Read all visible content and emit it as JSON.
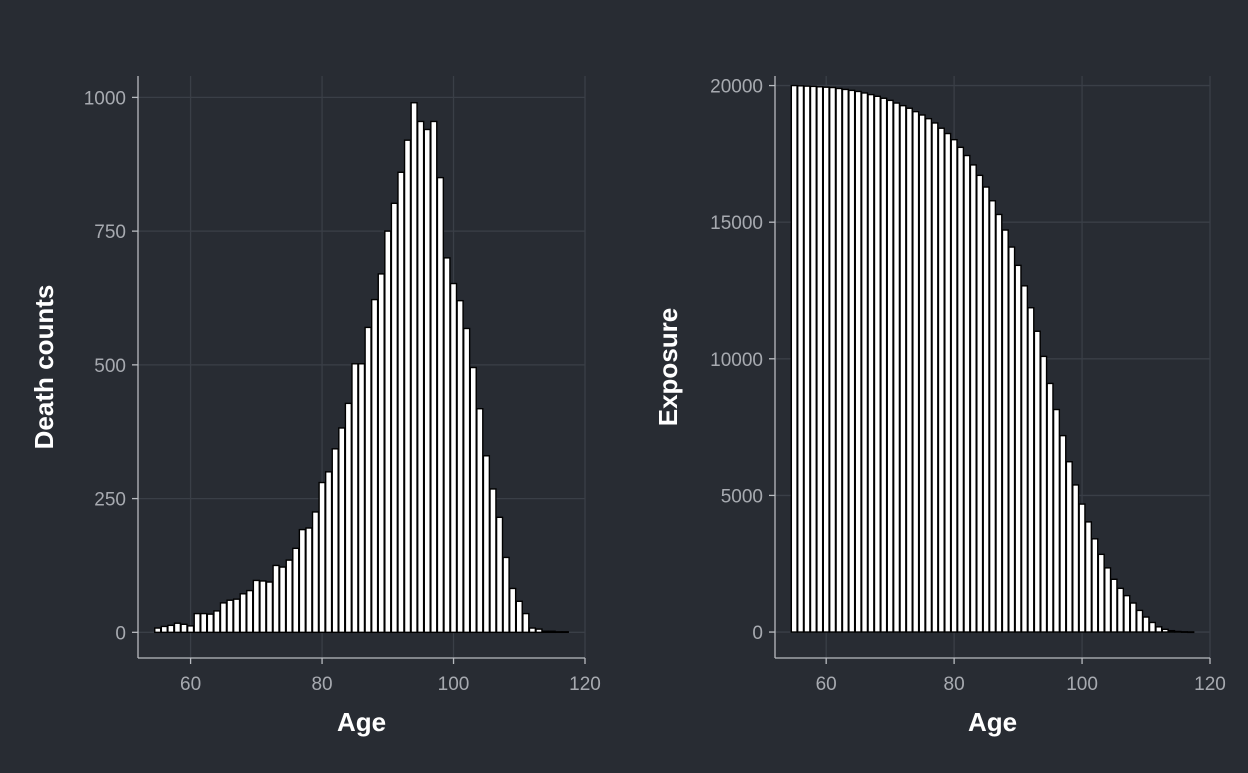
{
  "chart_data": [
    {
      "type": "bar",
      "xlabel": "Age",
      "ylabel": "Death counts",
      "xlim": [
        52,
        120
      ],
      "ylim": [
        -48,
        1040
      ],
      "xticks": [
        60,
        80,
        100,
        120
      ],
      "yticks": [
        0,
        250,
        500,
        750,
        1000
      ],
      "grid": true,
      "bar_width": 0.9,
      "x": [
        55,
        56,
        57,
        58,
        59,
        60,
        61,
        62,
        63,
        64,
        65,
        66,
        67,
        68,
        69,
        70,
        71,
        72,
        73,
        74,
        75,
        76,
        77,
        78,
        79,
        80,
        81,
        82,
        83,
        84,
        85,
        86,
        87,
        88,
        89,
        90,
        91,
        92,
        93,
        94,
        95,
        96,
        97,
        98,
        99,
        100,
        101,
        102,
        103,
        104,
        105,
        106,
        107,
        108,
        109,
        110,
        111,
        112,
        113,
        114,
        115,
        116,
        117
      ],
      "values": [
        8,
        11,
        13,
        17,
        15,
        12,
        35,
        35,
        34,
        40,
        55,
        60,
        62,
        72,
        78,
        97,
        96,
        94,
        125,
        122,
        135,
        157,
        192,
        195,
        225,
        280,
        300,
        343,
        382,
        428,
        502,
        502,
        570,
        622,
        670,
        750,
        802,
        860,
        920,
        990,
        955,
        940,
        955,
        850,
        700,
        652,
        620,
        568,
        495,
        418,
        330,
        268,
        215,
        140,
        82,
        58,
        35,
        8,
        6,
        2,
        2,
        1,
        1
      ]
    },
    {
      "type": "bar",
      "xlabel": "Age",
      "ylabel": "Exposure",
      "xlim": [
        52,
        120
      ],
      "ylim": [
        -950,
        20350
      ],
      "xticks": [
        60,
        80,
        100,
        120
      ],
      "yticks": [
        0,
        5000,
        10000,
        15000,
        20000
      ],
      "grid": true,
      "bar_width": 0.9,
      "x": [
        55,
        56,
        57,
        58,
        59,
        60,
        61,
        62,
        63,
        64,
        65,
        66,
        67,
        68,
        69,
        70,
        71,
        72,
        73,
        74,
        75,
        76,
        77,
        78,
        79,
        80,
        81,
        82,
        83,
        84,
        85,
        86,
        87,
        88,
        89,
        90,
        91,
        92,
        93,
        94,
        95,
        96,
        97,
        98,
        99,
        100,
        101,
        102,
        103,
        104,
        105,
        106,
        107,
        108,
        109,
        110,
        111,
        112,
        113,
        114,
        115,
        116,
        117
      ],
      "values": [
        20000,
        19990,
        19980,
        19970,
        19955,
        19940,
        19928,
        19893,
        19858,
        19824,
        19784,
        19729,
        19669,
        19607,
        19535,
        19457,
        19360,
        19264,
        19170,
        19045,
        18923,
        18788,
        18631,
        18439,
        18244,
        18019,
        17739,
        17439,
        17096,
        16714,
        16286,
        15784,
        15282,
        14712,
        14090,
        13420,
        12670,
        11868,
        11008,
        10088,
        9098,
        8143,
        7188,
        6233,
        5383,
        4683,
        4031,
        3411,
        2843,
        2348,
        1930,
        1600,
        1332,
        1062,
        791,
        549,
        350,
        190,
        100,
        50,
        20,
        10,
        5
      ]
    }
  ]
}
